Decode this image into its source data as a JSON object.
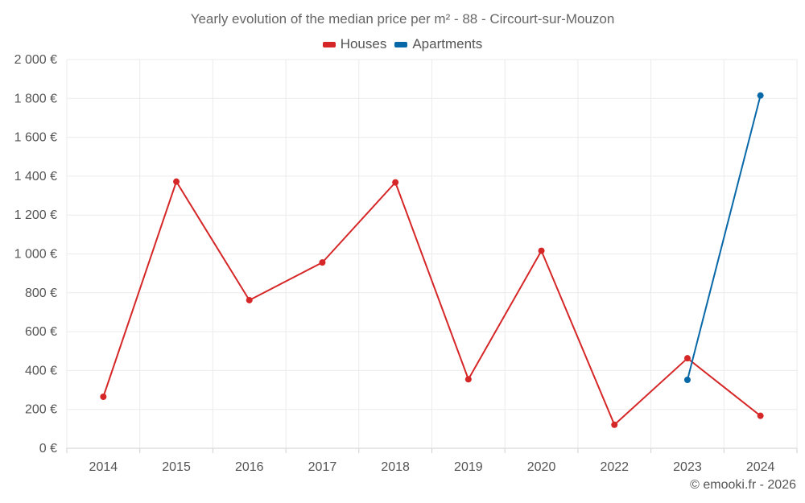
{
  "chart_data": {
    "type": "line",
    "title": "Yearly evolution of the median price per m² - 88 - Circourt-sur-Mouzon",
    "categories": [
      "2014",
      "2015",
      "2016",
      "2017",
      "2018",
      "2019",
      "2020",
      "2022",
      "2023",
      "2024"
    ],
    "series": [
      {
        "name": "Houses",
        "color": "#d62728",
        "values": [
          265,
          1372,
          762,
          956,
          1368,
          355,
          1016,
          121,
          463,
          167
        ]
      },
      {
        "name": "Apartments",
        "color": "#0868a8",
        "values": [
          null,
          null,
          null,
          null,
          null,
          null,
          null,
          null,
          352,
          1815
        ]
      }
    ],
    "y_ticks": [
      "0 €",
      "200 €",
      "400 €",
      "600 €",
      "800 €",
      "1 000 €",
      "1 200 €",
      "1 400 €",
      "1 600 €",
      "1 800 €",
      "2 000 €"
    ],
    "ylim": [
      0,
      2000
    ],
    "xlabel": "",
    "ylabel": "",
    "grid": true,
    "legend_position": "top-center"
  },
  "credit": "© emooki.fr - 2026"
}
